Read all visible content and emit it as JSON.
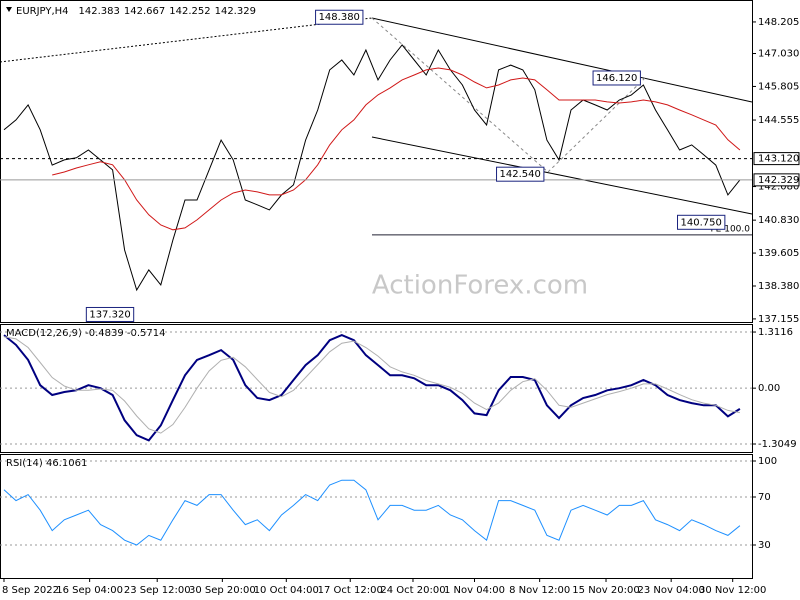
{
  "chart_data": [
    {
      "type": "line",
      "title": "EURJPY,H4",
      "ohlc": [
        142.383,
        142.667,
        142.252,
        142.329
      ],
      "watermark": "ActionForex.com",
      "xlim": [
        -0.33,
        62
      ],
      "ylim": [
        137.04,
        148.91
      ],
      "yticks": [
        148.205,
        {
          "value": 147.03,
          "label": "147.030"
        },
        145.805,
        144.555,
        {
          "value": 142.08,
          "label": "142.080"
        },
        {
          "value": 140.83,
          "label": "140.830"
        },
        139.605,
        {
          "value": 138.38,
          "label": "138.380"
        },
        137.155
      ],
      "series": [
        {
          "color": "#000000",
          "values": [
            144.19,
            144.56,
            145.12,
            144.19,
            142.88,
            143.07,
            143.15,
            143.44,
            143.07,
            142.7,
            139.72,
            138.23,
            138.98,
            138.42,
            140.09,
            141.58,
            141.58,
            142.7,
            143.81,
            143.07,
            141.58,
            141.4,
            141.21,
            141.77,
            142.14,
            143.81,
            144.93,
            146.42,
            146.79,
            146.23,
            147.16,
            146.05,
            146.79,
            147.35,
            146.79,
            146.23,
            147.16,
            146.42,
            145.86,
            144.93,
            144.37,
            146.42,
            146.6,
            146.42,
            145.68,
            143.81,
            143.07,
            144.93,
            145.3,
            145.12,
            144.93,
            145.3,
            145.49,
            145.86,
            144.93,
            144.19,
            143.44,
            143.63,
            143.26,
            142.88,
            141.77,
            142.329
          ]
        },
        {
          "color": "#d01818",
          "values": [
            null,
            null,
            null,
            null,
            142.51,
            142.62,
            142.77,
            142.89,
            143.0,
            142.89,
            142.33,
            141.58,
            141.03,
            140.65,
            140.47,
            140.54,
            140.84,
            141.21,
            141.58,
            141.84,
            141.95,
            141.88,
            141.77,
            141.77,
            141.95,
            142.33,
            142.89,
            143.63,
            144.19,
            144.56,
            145.12,
            145.49,
            145.75,
            146.05,
            146.23,
            146.42,
            146.49,
            146.42,
            146.23,
            145.97,
            145.75,
            145.86,
            146.05,
            146.12,
            146.05,
            145.68,
            145.3,
            145.3,
            145.3,
            145.3,
            145.23,
            145.19,
            145.23,
            145.3,
            145.23,
            145.12,
            144.93,
            144.75,
            144.56,
            144.37,
            143.82,
            143.44
          ]
        }
      ],
      "annotations": [
        {
          "value": 148.38,
          "label": "148.380",
          "x": 30
        },
        {
          "value": 142.54,
          "label": "142.540",
          "x": 45
        },
        {
          "value": 146.12,
          "label": "146.120",
          "x": 53
        },
        {
          "value": 140.75,
          "label": "140.750",
          "x": 60
        },
        {
          "value": 137.32,
          "label": "137.320",
          "x": 11
        }
      ],
      "levels": [
        {
          "value": 143.12,
          "label": "143.120"
        },
        142.329
      ],
      "fe_line": {
        "value": 140.28,
        "label": "FE 100.0"
      }
    },
    {
      "type": "line",
      "title": "MACD(12,26,9) -0.4839 -0.5714",
      "xlim": [
        -0.33,
        62
      ],
      "ylim": [
        -1.492,
        1.476
      ],
      "yticks": [
        1.3116,
        {
          "value": 0,
          "label": "0.00"
        },
        -1.3049
      ],
      "series": [
        {
          "color": "#000080",
          "values": [
            1.24,
            1.01,
            0.66,
            0.07,
            -0.16,
            -0.09,
            -0.05,
            0.07,
            0,
            -0.16,
            -0.75,
            -1.1,
            -1.22,
            -0.87,
            -0.28,
            0.3,
            0.66,
            0.77,
            0.89,
            0.66,
            0.07,
            -0.23,
            -0.28,
            -0.16,
            0.19,
            0.54,
            0.77,
            1.12,
            1.24,
            1.12,
            0.77,
            0.54,
            0.3,
            0.3,
            0.23,
            0.07,
            0.07,
            -0.05,
            -0.28,
            -0.59,
            -0.63,
            -0.05,
            0.26,
            0.26,
            0.19,
            -0.4,
            -0.7,
            -0.4,
            -0.23,
            -0.16,
            -0.05,
            0,
            0.07,
            0.19,
            0.07,
            -0.16,
            -0.28,
            -0.35,
            -0.4,
            -0.4,
            -0.66,
            -0.4839
          ]
        },
        {
          "color": "#b0b0b0",
          "values": [
            1.2,
            1.15,
            0.95,
            0.6,
            0.25,
            0.05,
            -0.05,
            -0.05,
            -0.02,
            -0.05,
            -0.3,
            -0.65,
            -0.95,
            -1.05,
            -0.85,
            -0.45,
            0,
            0.4,
            0.65,
            0.72,
            0.5,
            0.2,
            -0.1,
            -0.2,
            -0.05,
            0.25,
            0.55,
            0.85,
            1.05,
            1.1,
            0.95,
            0.75,
            0.5,
            0.38,
            0.3,
            0.18,
            0.1,
            0.02,
            -0.12,
            -0.35,
            -0.5,
            -0.35,
            -0.05,
            0.15,
            0.22,
            -0.05,
            -0.4,
            -0.45,
            -0.35,
            -0.25,
            -0.15,
            -0.08,
            0,
            0.1,
            0.1,
            -0.02,
            -0.15,
            -0.27,
            -0.35,
            -0.4,
            -0.52,
            -0.5714
          ]
        }
      ]
    },
    {
      "type": "line",
      "title": "RSI(14) 46.1061",
      "xlim": [
        -0.33,
        62
      ],
      "ylim": [
        2.5,
        105
      ],
      "yticks": [
        100,
        70,
        30
      ],
      "series": [
        {
          "color": "#1e90ff",
          "values": [
            76,
            67,
            72,
            59,
            42,
            51,
            55,
            59,
            47,
            42,
            34,
            30,
            38,
            34,
            51,
            67,
            63,
            72,
            72,
            59,
            47,
            51,
            42,
            55,
            63,
            72,
            67,
            80,
            84,
            84,
            76,
            51,
            63,
            63,
            59,
            59,
            63,
            55,
            51,
            42,
            34,
            67,
            67,
            63,
            59,
            38,
            34,
            59,
            63,
            59,
            55,
            63,
            63,
            67,
            51,
            47,
            42,
            51,
            47,
            42,
            38,
            46.1061
          ]
        }
      ],
      "xticks": [
        {
          "value": 0,
          "label": "8 Sep 2022"
        },
        {
          "value": 7.1,
          "label": "16 Sep 04:00"
        },
        {
          "value": 12.7,
          "label": "23 Sep 12:00"
        },
        {
          "value": 18.1,
          "label": "30 Sep 20:00"
        },
        {
          "value": 23.4,
          "label": "10 Oct 04:00"
        },
        {
          "value": 28.7,
          "label": "17 Oct 12:00"
        },
        {
          "value": 33.9,
          "label": "24 Oct 20:00"
        },
        {
          "value": 39,
          "label": "1 Nov 04:00"
        },
        {
          "value": 44.4,
          "label": "8 Nov 12:00"
        },
        {
          "value": 49.9,
          "label": "15 Nov 20:00"
        },
        {
          "value": 55.3,
          "label": "23 Nov 04:00"
        },
        {
          "value": 60.4,
          "label": "30 Nov 12:00"
        }
      ]
    }
  ]
}
